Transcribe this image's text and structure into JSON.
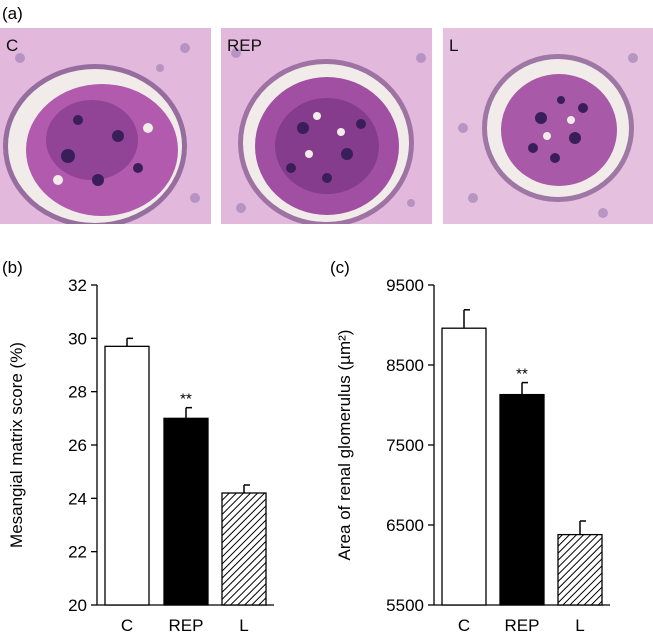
{
  "panels": {
    "a": {
      "letter": "(a)",
      "images": [
        {
          "label": "C"
        },
        {
          "label": "REP"
        },
        {
          "label": "L"
        }
      ]
    },
    "b": {
      "letter": "(b)"
    },
    "c": {
      "letter": "(c)"
    }
  },
  "colors": {
    "tissue_background": "#e2b9dd",
    "tissue_dark": "#8a3d8e",
    "capsule_space": "#f1ece9",
    "bar_C": "#ffffff",
    "bar_REP": "#000000",
    "bar_L": "hatched"
  },
  "chart_data": [
    {
      "type": "bar",
      "panel": "(b)",
      "categories": [
        "C",
        "REP",
        "L"
      ],
      "values": [
        29.7,
        27.0,
        24.2
      ],
      "error": [
        0.3,
        0.4,
        0.3
      ],
      "significance": [
        "",
        "**",
        ""
      ],
      "ylabel": "Mesangial matrix score (%)",
      "xlabel": "",
      "ylim": [
        20,
        32
      ],
      "yticks": [
        20,
        22,
        24,
        26,
        28,
        30,
        32
      ],
      "bar_styles": [
        "white",
        "black",
        "hatched"
      ]
    },
    {
      "type": "bar",
      "panel": "(c)",
      "categories": [
        "C",
        "REP",
        "L"
      ],
      "values": [
        8960,
        8130,
        6380
      ],
      "error": [
        230,
        150,
        170
      ],
      "significance": [
        "",
        "**",
        ""
      ],
      "ylabel": "Area of renal glomerulus (µm²)",
      "xlabel": "",
      "ylim": [
        5500,
        9500
      ],
      "yticks": [
        5500,
        6500,
        7500,
        8500,
        9500
      ],
      "bar_styles": [
        "white",
        "black",
        "hatched"
      ]
    }
  ]
}
